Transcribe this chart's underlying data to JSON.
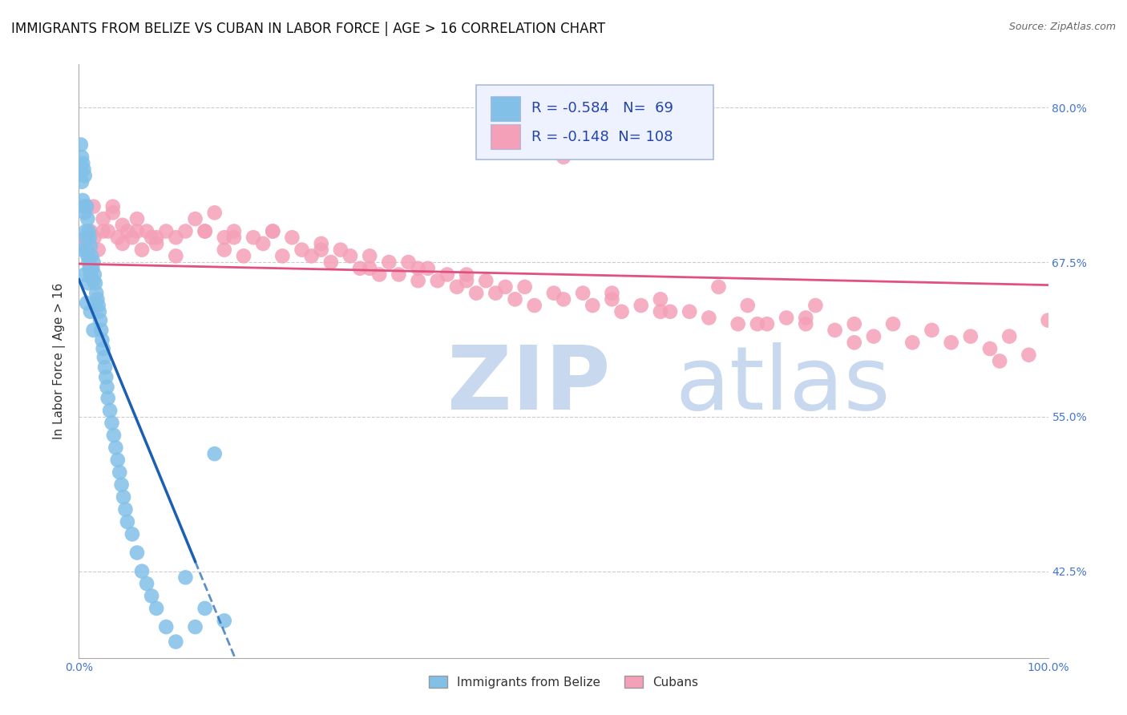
{
  "title": "IMMIGRANTS FROM BELIZE VS CUBAN IN LABOR FORCE | AGE > 16 CORRELATION CHART",
  "source": "Source: ZipAtlas.com",
  "ylabel": "In Labor Force | Age > 16",
  "belize_R": -0.584,
  "belize_N": 69,
  "cuban_R": -0.148,
  "cuban_N": 108,
  "belize_color": "#82c0e8",
  "cuban_color": "#f4a0b8",
  "belize_line_color": "#1a5fb4",
  "cuban_line_color": "#e05080",
  "background_color": "#ffffff",
  "grid_color": "#cccccc",
  "xlim": [
    0.0,
    1.0
  ],
  "ylim": [
    0.355,
    0.835
  ],
  "yticks": [
    0.425,
    0.55,
    0.675,
    0.8
  ],
  "ytick_labels": [
    "42.5%",
    "55.0%",
    "67.5%",
    "80.0%"
  ],
  "belize_x": [
    0.002,
    0.003,
    0.003,
    0.004,
    0.004,
    0.005,
    0.005,
    0.006,
    0.006,
    0.007,
    0.007,
    0.008,
    0.008,
    0.009,
    0.009,
    0.01,
    0.01,
    0.011,
    0.011,
    0.012,
    0.012,
    0.013,
    0.014,
    0.015,
    0.015,
    0.016,
    0.017,
    0.018,
    0.019,
    0.02,
    0.021,
    0.022,
    0.023,
    0.024,
    0.025,
    0.026,
    0.027,
    0.028,
    0.029,
    0.03,
    0.032,
    0.034,
    0.036,
    0.038,
    0.04,
    0.042,
    0.044,
    0.046,
    0.048,
    0.05,
    0.055,
    0.06,
    0.065,
    0.07,
    0.075,
    0.08,
    0.09,
    0.1,
    0.11,
    0.12,
    0.13,
    0.14,
    0.15,
    0.004,
    0.006,
    0.008,
    0.01,
    0.012,
    0.015
  ],
  "belize_y": [
    0.77,
    0.76,
    0.74,
    0.755,
    0.725,
    0.75,
    0.72,
    0.745,
    0.715,
    0.7,
    0.695,
    0.72,
    0.685,
    0.71,
    0.68,
    0.7,
    0.675,
    0.695,
    0.67,
    0.688,
    0.665,
    0.68,
    0.67,
    0.66,
    0.675,
    0.665,
    0.658,
    0.65,
    0.645,
    0.64,
    0.635,
    0.628,
    0.62,
    0.612,
    0.605,
    0.598,
    0.59,
    0.582,
    0.574,
    0.565,
    0.555,
    0.545,
    0.535,
    0.525,
    0.515,
    0.505,
    0.495,
    0.485,
    0.475,
    0.465,
    0.455,
    0.44,
    0.425,
    0.415,
    0.405,
    0.395,
    0.38,
    0.368,
    0.42,
    0.38,
    0.395,
    0.52,
    0.385,
    0.685,
    0.665,
    0.642,
    0.658,
    0.635,
    0.62
  ],
  "cuban_x": [
    0.003,
    0.008,
    0.012,
    0.016,
    0.02,
    0.025,
    0.03,
    0.035,
    0.04,
    0.045,
    0.05,
    0.055,
    0.06,
    0.065,
    0.07,
    0.075,
    0.08,
    0.09,
    0.1,
    0.11,
    0.12,
    0.13,
    0.14,
    0.15,
    0.16,
    0.17,
    0.18,
    0.19,
    0.2,
    0.21,
    0.22,
    0.23,
    0.24,
    0.25,
    0.26,
    0.27,
    0.28,
    0.29,
    0.3,
    0.31,
    0.32,
    0.33,
    0.34,
    0.35,
    0.36,
    0.37,
    0.38,
    0.39,
    0.4,
    0.41,
    0.42,
    0.43,
    0.44,
    0.45,
    0.46,
    0.47,
    0.49,
    0.5,
    0.52,
    0.53,
    0.55,
    0.56,
    0.58,
    0.6,
    0.61,
    0.63,
    0.65,
    0.66,
    0.68,
    0.69,
    0.71,
    0.73,
    0.75,
    0.76,
    0.78,
    0.8,
    0.82,
    0.84,
    0.86,
    0.88,
    0.9,
    0.92,
    0.94,
    0.96,
    0.98,
    1.0,
    0.015,
    0.025,
    0.035,
    0.045,
    0.06,
    0.08,
    0.1,
    0.13,
    0.16,
    0.2,
    0.25,
    0.3,
    0.4,
    0.5,
    0.6,
    0.7,
    0.8,
    0.15,
    0.35,
    0.55,
    0.75,
    0.95
  ],
  "cuban_y": [
    0.69,
    0.72,
    0.7,
    0.695,
    0.685,
    0.71,
    0.7,
    0.715,
    0.695,
    0.705,
    0.7,
    0.695,
    0.71,
    0.685,
    0.7,
    0.695,
    0.69,
    0.7,
    0.695,
    0.7,
    0.71,
    0.7,
    0.715,
    0.695,
    0.7,
    0.68,
    0.695,
    0.69,
    0.7,
    0.68,
    0.695,
    0.685,
    0.68,
    0.69,
    0.675,
    0.685,
    0.68,
    0.67,
    0.68,
    0.665,
    0.675,
    0.665,
    0.675,
    0.66,
    0.67,
    0.66,
    0.665,
    0.655,
    0.665,
    0.65,
    0.66,
    0.65,
    0.655,
    0.645,
    0.655,
    0.64,
    0.65,
    0.76,
    0.65,
    0.64,
    0.645,
    0.635,
    0.64,
    0.645,
    0.635,
    0.635,
    0.63,
    0.655,
    0.625,
    0.64,
    0.625,
    0.63,
    0.625,
    0.64,
    0.62,
    0.625,
    0.615,
    0.625,
    0.61,
    0.62,
    0.61,
    0.615,
    0.605,
    0.615,
    0.6,
    0.628,
    0.72,
    0.7,
    0.72,
    0.69,
    0.7,
    0.695,
    0.68,
    0.7,
    0.695,
    0.7,
    0.685,
    0.67,
    0.66,
    0.645,
    0.635,
    0.625,
    0.61,
    0.685,
    0.67,
    0.65,
    0.63,
    0.595
  ],
  "legend_box_color": "#eef2ff",
  "legend_border_color": "#aabbdd",
  "watermark_zip": "ZIP",
  "watermark_atlas": "atlas",
  "watermark_color": "#c8d8ee",
  "title_fontsize": 12,
  "axis_label_fontsize": 11,
  "tick_fontsize": 10,
  "legend_fontsize": 13
}
